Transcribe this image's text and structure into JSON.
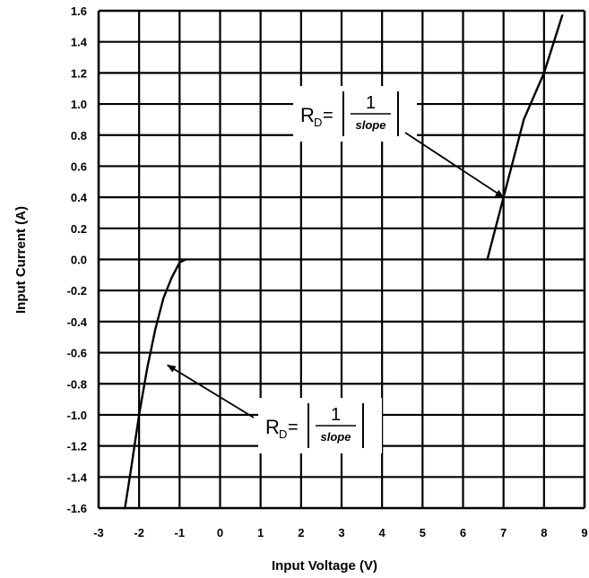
{
  "chart_data": {
    "type": "line",
    "xlabel": "Input Voltage (V)",
    "ylabel": "Input Current (A)",
    "xlim": [
      -3,
      9
    ],
    "ylim": [
      -1.6,
      1.6
    ],
    "x_ticks": [
      -3,
      -2,
      -1,
      0,
      1,
      2,
      3,
      4,
      5,
      6,
      7,
      8,
      9
    ],
    "y_ticks": [
      -1.6,
      -1.4,
      -1.2,
      -1.0,
      -0.8,
      -0.6,
      -0.4,
      -0.2,
      0.0,
      0.2,
      0.4,
      0.6,
      0.8,
      1.0,
      1.2,
      1.4,
      1.6
    ],
    "x_tick_labels": [
      "-3",
      "-2",
      "-1",
      "0",
      "1",
      "2",
      "3",
      "4",
      "5",
      "6",
      "7",
      "8",
      "9"
    ],
    "y_tick_labels": [
      "-1.6",
      "-1.4",
      "-1.2",
      "-1.0",
      "-0.8",
      "-0.6",
      "-0.4",
      "-0.2",
      "0.0",
      "0.2",
      "0.4",
      "0.6",
      "0.8",
      "1.0",
      "1.2",
      "1.4",
      "1.6"
    ],
    "grid": true,
    "series": [
      {
        "points": [
          [
            -2.35,
            -1.6
          ],
          [
            -2.2,
            -1.35
          ],
          [
            -2.0,
            -1.0
          ],
          [
            -1.8,
            -0.7
          ],
          [
            -1.6,
            -0.45
          ],
          [
            -1.4,
            -0.25
          ],
          [
            -1.2,
            -0.12
          ],
          [
            -1.0,
            -0.02
          ],
          [
            -0.85,
            0.0
          ]
        ]
      },
      {
        "points": [
          [
            6.6,
            0.0
          ],
          [
            7.0,
            0.4
          ],
          [
            7.5,
            0.9
          ],
          [
            8.0,
            1.2
          ],
          [
            8.45,
            1.57
          ]
        ]
      }
    ],
    "annotations": [
      {
        "label_main": "R",
        "label_sub": "D",
        "equals": "=",
        "numerator": "1",
        "denominator": "slope",
        "arrow_target": [
          7.0,
          0.4
        ]
      },
      {
        "label_main": "R",
        "label_sub": "D",
        "equals": "=",
        "numerator": "1",
        "denominator": "slope",
        "arrow_target": [
          -1.3,
          -0.68
        ]
      }
    ]
  }
}
